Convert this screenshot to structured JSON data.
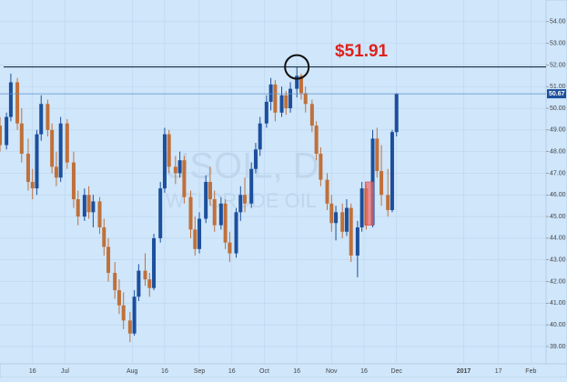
{
  "chart_data": {
    "type": "candlestick",
    "symbol": "USOIL, D",
    "instrument": "WTI CRUDE OIL",
    "annotation": "$51.91",
    "resistance": 51.91,
    "last_price": 50.67,
    "up_color": "#1c4f9c",
    "down_color": "#c0703a",
    "highlight": {
      "xlim": [
        168.5,
        172.5
      ],
      "ylim": [
        44.6,
        46.6
      ]
    },
    "xlim": [
      0,
      252
    ],
    "ylim": [
      38.2,
      55.0
    ],
    "grid": true,
    "xticks": [
      {
        "value": 15,
        "label": "16"
      },
      {
        "value": 30,
        "label": "Jul"
      },
      {
        "value": 61,
        "label": "Aug"
      },
      {
        "value": 76,
        "label": "16"
      },
      {
        "value": 92,
        "label": "Sep"
      },
      {
        "value": 107,
        "label": "16"
      },
      {
        "value": 122,
        "label": "Oct"
      },
      {
        "value": 137,
        "label": "16"
      },
      {
        "value": 153,
        "label": "Nov"
      },
      {
        "value": 168,
        "label": "16"
      },
      {
        "value": 183,
        "label": "Dec"
      },
      {
        "value": 214,
        "label": "2017"
      },
      {
        "value": 230,
        "label": "17"
      },
      {
        "value": 245,
        "label": "Feb"
      }
    ],
    "yticks": [
      {
        "value": 39,
        "label": "39.00"
      },
      {
        "value": 40,
        "label": "40.00"
      },
      {
        "value": 41,
        "label": "41.00"
      },
      {
        "value": 42,
        "label": "42.00"
      },
      {
        "value": 43,
        "label": "43.00"
      },
      {
        "value": 44,
        "label": "44.00"
      },
      {
        "value": 45,
        "label": "45.00"
      },
      {
        "value": 46,
        "label": "46.00"
      },
      {
        "value": 47,
        "label": "47.00"
      },
      {
        "value": 48,
        "label": "48.00"
      },
      {
        "value": 49,
        "label": "49.00"
      },
      {
        "value": 50,
        "label": "50.00"
      },
      {
        "value": 51,
        "label": "51.00"
      },
      {
        "value": 52,
        "label": "52.00"
      },
      {
        "value": 53,
        "label": "53.00"
      },
      {
        "value": 54,
        "label": "54.00"
      }
    ],
    "x": [
      0,
      3,
      5,
      8,
      10,
      13,
      15,
      17,
      19,
      22,
      24,
      26,
      28,
      31,
      34,
      36,
      39,
      41,
      43,
      46,
      48,
      50,
      53,
      55,
      57,
      60,
      62,
      64,
      67,
      69,
      71,
      74,
      76,
      78,
      81,
      83,
      85,
      88,
      90,
      92,
      95,
      97,
      99,
      102,
      104,
      106,
      109,
      111,
      113,
      116,
      118,
      120,
      123,
      125,
      127,
      130,
      132,
      134,
      137,
      139,
      141,
      144,
      146,
      148,
      151,
      153,
      155,
      158,
      160,
      162,
      165,
      167,
      169,
      172,
      174,
      176,
      179,
      181,
      183
    ],
    "open": [
      49.2,
      48.3,
      49.6,
      51.2,
      49.3,
      47.9,
      46.6,
      46.3,
      48.8,
      50.2,
      49.0,
      47.3,
      46.8,
      49.3,
      47.5,
      45.8,
      45.0,
      46.0,
      45.2,
      45.7,
      44.5,
      43.6,
      42.4,
      41.6,
      40.9,
      40.2,
      39.6,
      41.3,
      42.5,
      42.1,
      41.7,
      44.0,
      46.3,
      48.8,
      47.3,
      47.0,
      47.6,
      45.9,
      44.4,
      43.5,
      44.9,
      46.6,
      45.8,
      44.6,
      45.6,
      43.8,
      43.3,
      45.2,
      46.0,
      45.6,
      47.2,
      48.1,
      49.3,
      50.3,
      51.1,
      49.8,
      50.6,
      50.0,
      50.9,
      51.5,
      50.7,
      50.2,
      49.2,
      47.9,
      46.7,
      45.6,
      44.7,
      45.2,
      44.3,
      45.4,
      43.2,
      44.5,
      46.3,
      44.6,
      48.6,
      47.1,
      46.0,
      45.3,
      48.9
    ],
    "high": [
      49.6,
      49.8,
      51.6,
      51.4,
      50.0,
      48.6,
      47.2,
      49.0,
      50.6,
      50.4,
      49.3,
      48.0,
      49.6,
      49.5,
      48.0,
      46.2,
      46.3,
      46.4,
      46.0,
      45.9,
      44.9,
      44.0,
      42.9,
      42.1,
      41.5,
      40.6,
      41.6,
      42.8,
      43.3,
      42.4,
      44.2,
      46.6,
      49.1,
      49.0,
      47.8,
      48.0,
      47.8,
      46.2,
      45.0,
      45.2,
      46.9,
      47.3,
      46.2,
      45.9,
      45.8,
      44.3,
      45.4,
      46.4,
      46.8,
      47.5,
      48.4,
      49.6,
      50.6,
      51.4,
      51.3,
      51.0,
      50.8,
      51.2,
      51.91,
      51.6,
      51.0,
      50.4,
      49.4,
      48.2,
      47.0,
      46.0,
      45.5,
      45.6,
      45.8,
      45.6,
      44.8,
      46.6,
      46.5,
      49.0,
      49.1,
      48.3,
      47.2,
      49.0,
      50.7
    ],
    "low": [
      48.0,
      48.1,
      49.4,
      49.0,
      47.5,
      46.2,
      45.8,
      46.0,
      48.5,
      48.7,
      47.0,
      46.4,
      46.6,
      47.2,
      45.4,
      44.6,
      44.8,
      44.9,
      44.5,
      44.2,
      43.2,
      42.0,
      41.2,
      40.5,
      39.8,
      39.2,
      39.5,
      41.1,
      41.8,
      41.3,
      41.6,
      43.8,
      46.1,
      47.0,
      46.5,
      46.8,
      45.6,
      44.0,
      43.2,
      43.3,
      44.7,
      45.5,
      44.3,
      44.4,
      43.5,
      42.9,
      43.1,
      44.8,
      45.2,
      45.4,
      47.0,
      47.8,
      49.1,
      49.9,
      49.4,
      49.6,
      49.7,
      49.8,
      50.5,
      50.4,
      49.8,
      48.9,
      47.6,
      46.4,
      45.3,
      44.3,
      43.9,
      44.0,
      44.1,
      42.9,
      42.2,
      44.3,
      44.4,
      44.5,
      46.8,
      45.5,
      45.0,
      45.2,
      48.7
    ],
    "close": [
      48.3,
      49.6,
      51.2,
      49.3,
      47.9,
      46.6,
      46.3,
      48.8,
      50.2,
      49.0,
      47.3,
      46.8,
      49.3,
      47.5,
      45.8,
      45.0,
      46.0,
      45.2,
      45.7,
      44.5,
      43.6,
      42.4,
      41.6,
      40.9,
      40.2,
      39.6,
      41.3,
      42.5,
      42.1,
      41.7,
      44.0,
      46.3,
      48.8,
      47.3,
      47.0,
      47.6,
      45.9,
      44.4,
      43.5,
      44.9,
      46.6,
      45.8,
      44.6,
      45.6,
      43.8,
      43.3,
      45.2,
      46.0,
      45.6,
      47.2,
      48.1,
      49.3,
      50.3,
      51.1,
      49.8,
      50.6,
      50.0,
      50.9,
      51.5,
      50.7,
      50.2,
      49.2,
      47.9,
      46.7,
      45.6,
      44.7,
      45.2,
      44.3,
      45.4,
      43.2,
      44.5,
      46.3,
      44.6,
      48.6,
      47.1,
      46.0,
      45.3,
      48.9,
      50.67
    ]
  }
}
